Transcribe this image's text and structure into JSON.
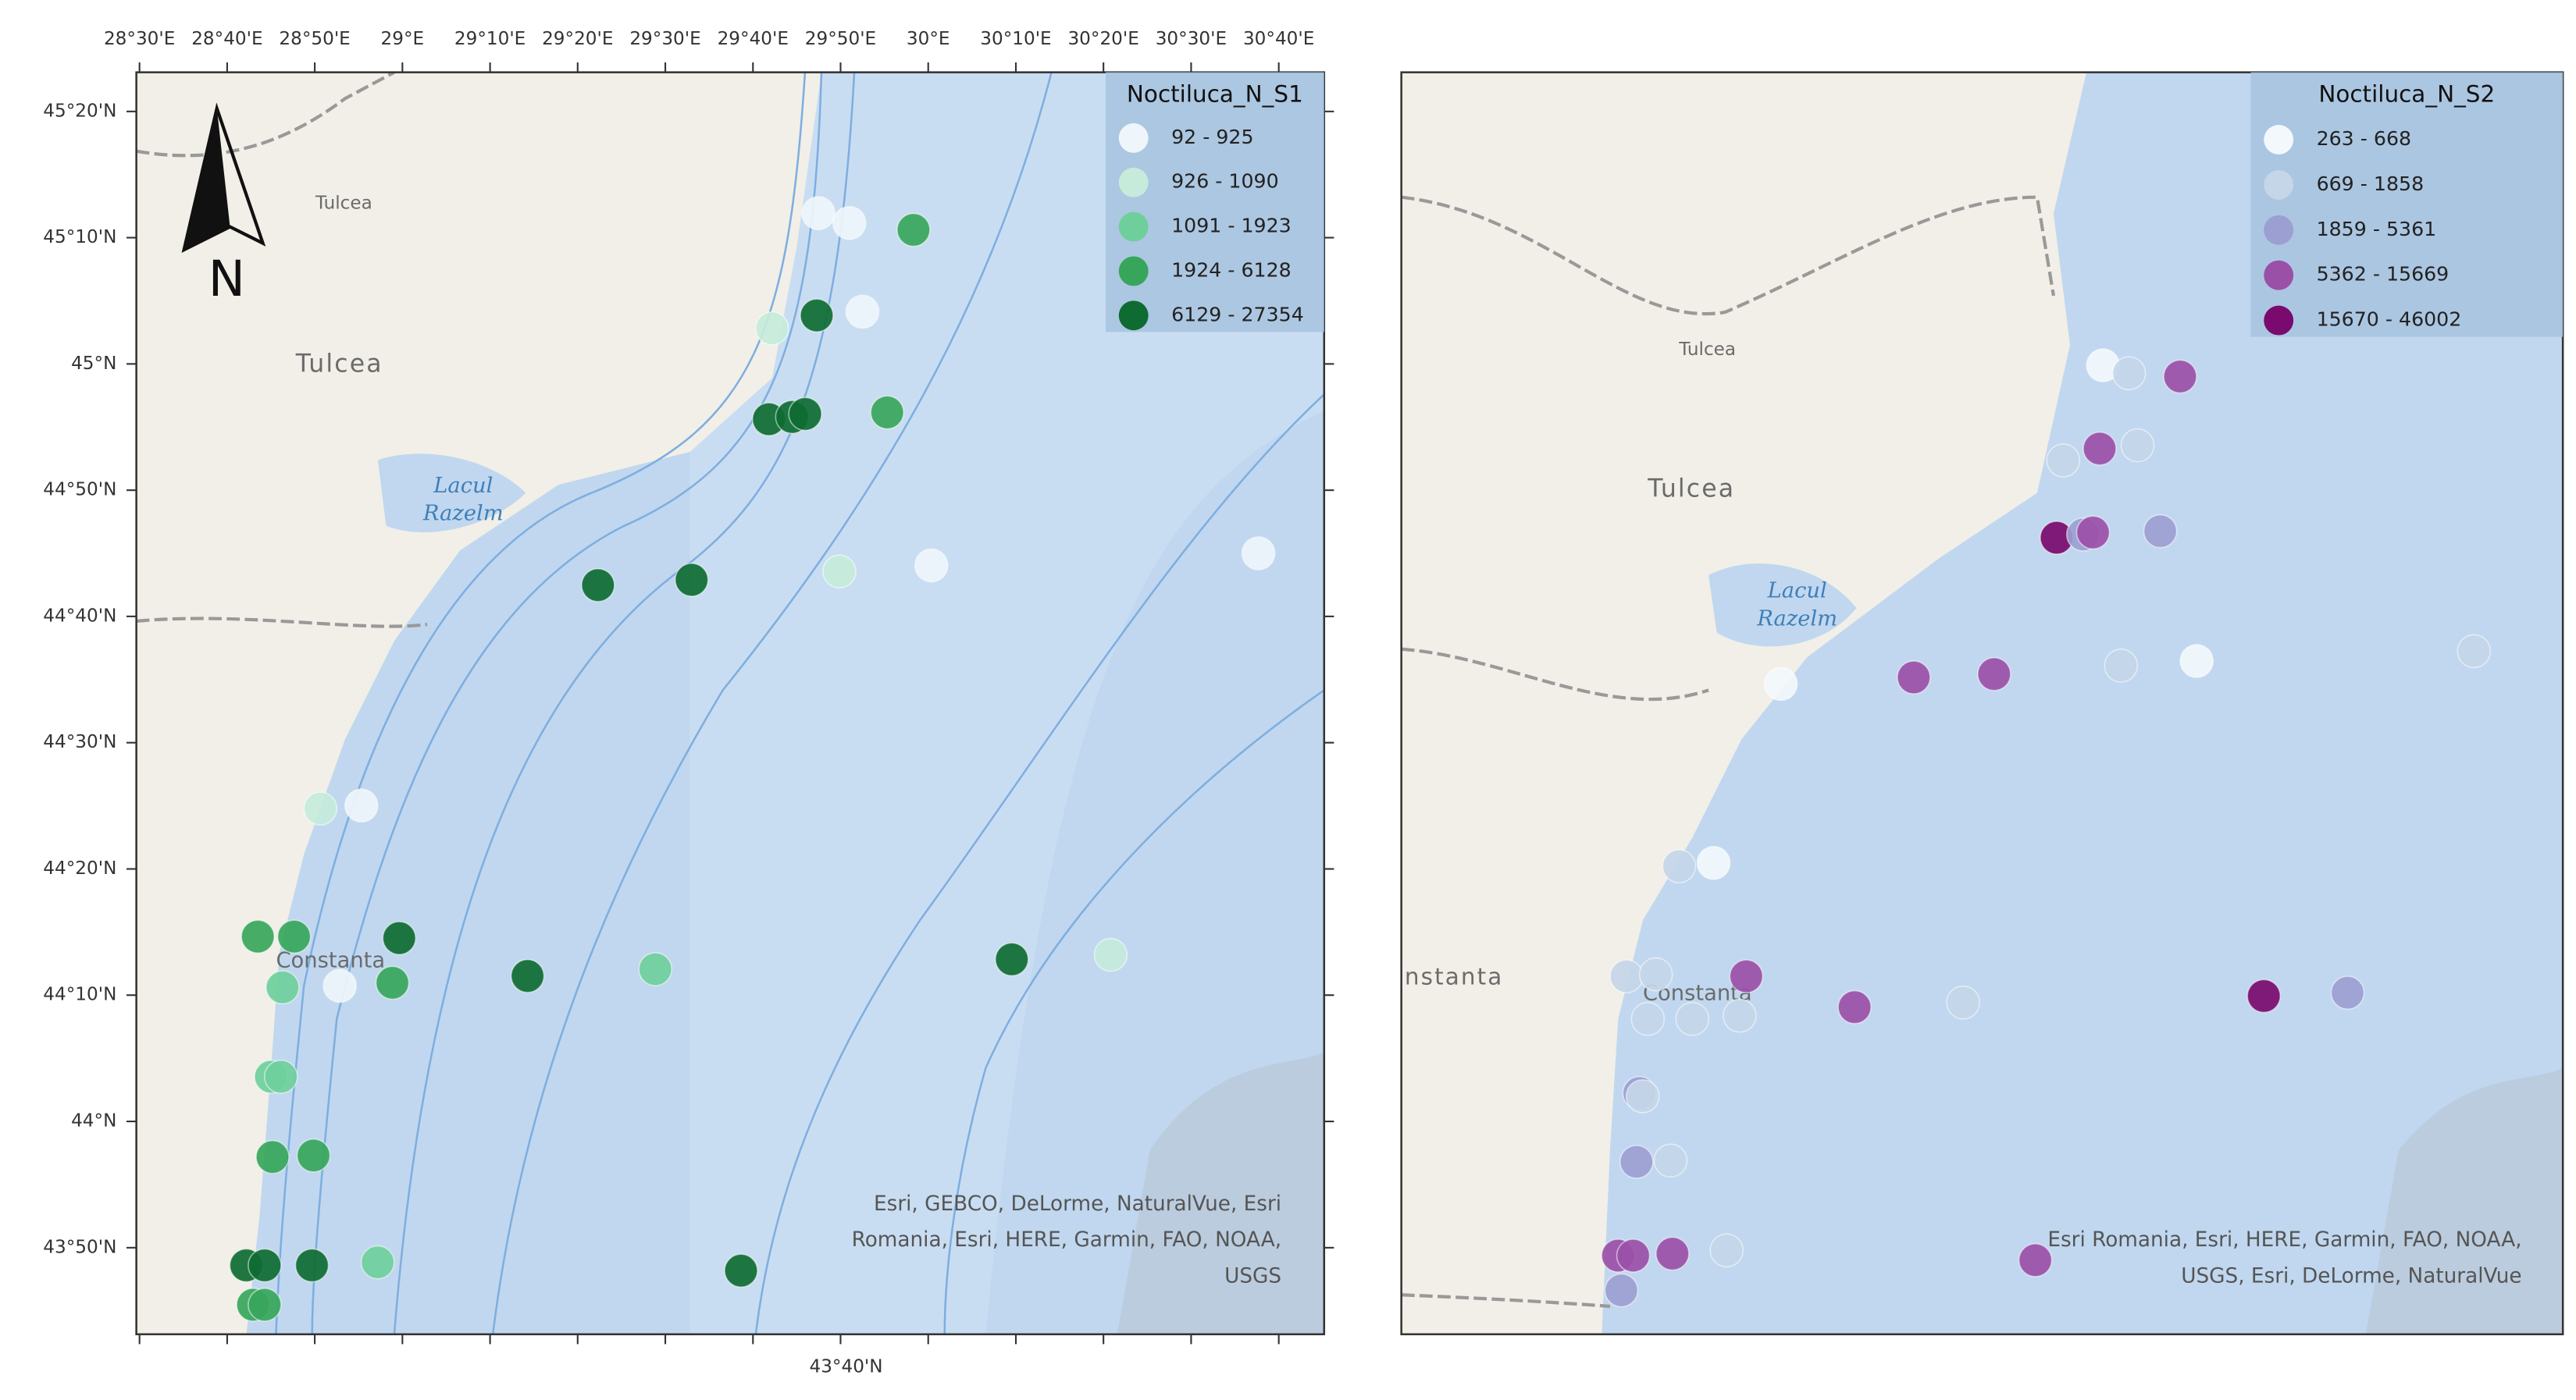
{
  "north_label": "N",
  "bottom_label": "43°40'N",
  "maps": [
    {
      "legend_title": "Noctiluca_N_S1",
      "classes": [
        {
          "label": "92 - 925",
          "color": "#eef5fb"
        },
        {
          "label": "926 - 1090",
          "color": "#c6ebdb"
        },
        {
          "label": "1091 - 1923",
          "color": "#6fcf9c"
        },
        {
          "label": "1924 - 6128",
          "color": "#37a65b"
        },
        {
          "label": "6129 - 27354",
          "color": "#0e6b32"
        }
      ],
      "xlim": [
        28.494,
        30.753
      ],
      "ylim": [
        43.719,
        45.385
      ],
      "xticks": [
        {
          "value": 28.5,
          "label": "28°30'E"
        },
        {
          "value": 28.6667,
          "label": "28°40'E"
        },
        {
          "value": 28.8333,
          "label": "28°50'E"
        },
        {
          "value": 29,
          "label": "29°E"
        },
        {
          "value": 29.1667,
          "label": "29°10'E"
        },
        {
          "value": 29.3333,
          "label": "29°20'E"
        },
        {
          "value": 29.5,
          "label": "29°30'E"
        },
        {
          "value": 29.6667,
          "label": "29°40'E"
        },
        {
          "value": 29.8333,
          "label": "29°50'E"
        },
        {
          "value": 30,
          "label": "30°E"
        },
        {
          "value": 30.1667,
          "label": "30°10'E"
        },
        {
          "value": 30.3333,
          "label": "30°20'E"
        },
        {
          "value": 30.5,
          "label": "30°30'E"
        },
        {
          "value": 30.6667,
          "label": "30°40'E"
        }
      ],
      "yticks": [
        {
          "value": 45.3333,
          "label": "45°20'N"
        },
        {
          "value": 45.1667,
          "label": "45°10'N"
        },
        {
          "value": 45,
          "label": "45°N"
        },
        {
          "value": 44.8333,
          "label": "44°50'N"
        },
        {
          "value": 44.6667,
          "label": "44°40'N"
        },
        {
          "value": 44.5,
          "label": "44°30'N"
        },
        {
          "value": 44.3333,
          "label": "44°20'N"
        },
        {
          "value": 44.1667,
          "label": "44°10'N"
        },
        {
          "value": 44,
          "label": "44°N"
        },
        {
          "value": 43.8333,
          "label": "43°50'N"
        }
      ],
      "places": [
        "Tulcea",
        "Tulcea",
        "Lacul",
        "Razelm",
        "Constanta"
      ],
      "attribution": [
        "Esri, GEBCO, DeLorme, NaturalVue, Esri",
        "Romania, Esri, HERE, Garmin, FAO, NOAA,",
        "USGS"
      ],
      "points": [
        {
          "lon": 29.791,
          "lat": 45.199,
          "class": 0
        },
        {
          "lon": 29.85,
          "lat": 45.186,
          "class": 0
        },
        {
          "lon": 29.972,
          "lat": 45.177,
          "class": 3
        },
        {
          "lon": 29.703,
          "lat": 45.047,
          "class": 1
        },
        {
          "lon": 29.788,
          "lat": 45.064,
          "class": 4
        },
        {
          "lon": 29.875,
          "lat": 45.069,
          "class": 0
        },
        {
          "lon": 29.697,
          "lat": 44.927,
          "class": 4
        },
        {
          "lon": 29.741,
          "lat": 44.93,
          "class": 4
        },
        {
          "lon": 29.766,
          "lat": 44.934,
          "class": 4
        },
        {
          "lon": 29.922,
          "lat": 44.936,
          "class": 3
        },
        {
          "lon": 29.372,
          "lat": 44.708,
          "class": 4
        },
        {
          "lon": 29.55,
          "lat": 44.715,
          "class": 4
        },
        {
          "lon": 29.831,
          "lat": 44.726,
          "class": 1
        },
        {
          "lon": 30.006,
          "lat": 44.734,
          "class": 0
        },
        {
          "lon": 30.628,
          "lat": 44.75,
          "class": 0
        },
        {
          "lon": 28.844,
          "lat": 44.413,
          "class": 1
        },
        {
          "lon": 28.922,
          "lat": 44.417,
          "class": 0
        },
        {
          "lon": 28.725,
          "lat": 44.244,
          "class": 3
        },
        {
          "lon": 28.794,
          "lat": 44.244,
          "class": 3
        },
        {
          "lon": 28.994,
          "lat": 44.242,
          "class": 4
        },
        {
          "lon": 28.772,
          "lat": 44.177,
          "class": 2
        },
        {
          "lon": 28.881,
          "lat": 44.179,
          "class": 0
        },
        {
          "lon": 28.981,
          "lat": 44.183,
          "class": 3
        },
        {
          "lon": 29.238,
          "lat": 44.192,
          "class": 4
        },
        {
          "lon": 29.481,
          "lat": 44.201,
          "class": 2
        },
        {
          "lon": 30.159,
          "lat": 44.214,
          "class": 4
        },
        {
          "lon": 30.347,
          "lat": 44.22,
          "class": 1
        },
        {
          "lon": 28.75,
          "lat": 44.059,
          "class": 2
        },
        {
          "lon": 28.769,
          "lat": 44.059,
          "class": 2
        },
        {
          "lon": 28.753,
          "lat": 43.953,
          "class": 3
        },
        {
          "lon": 28.831,
          "lat": 43.955,
          "class": 3
        },
        {
          "lon": 28.703,
          "lat": 43.81,
          "class": 4
        },
        {
          "lon": 28.738,
          "lat": 43.81,
          "class": 4
        },
        {
          "lon": 28.828,
          "lat": 43.81,
          "class": 4
        },
        {
          "lon": 28.953,
          "lat": 43.814,
          "class": 2
        },
        {
          "lon": 29.644,
          "lat": 43.803,
          "class": 4
        },
        {
          "lon": 28.716,
          "lat": 43.758,
          "class": 3
        },
        {
          "lon": 28.738,
          "lat": 43.758,
          "class": 3
        }
      ]
    },
    {
      "legend_title": "Noctiluca_N_S2",
      "classes": [
        {
          "label": "263 - 668",
          "color": "#f3f8fc"
        },
        {
          "label": "669 - 1858",
          "color": "#c4d6e8"
        },
        {
          "label": "1859 - 5361",
          "color": "#9c9fd2"
        },
        {
          "label": "5362 - 15669",
          "color": "#9b50a8"
        },
        {
          "label": "15670 - 46002",
          "color": "#7a0a6e"
        }
      ],
      "xlim": [
        28.25,
        30.705
      ],
      "ylim": [
        43.712,
        45.637
      ],
      "places": [
        "Tulcea",
        "Tulcea",
        "Lacul",
        "Razelm",
        "nstanta",
        "Constanta"
      ],
      "attribution": [
        "Esri Romania, Esri, HERE, Garmin, FAO, NOAA,",
        "USGS, Esri, DeLorme, NaturalVue"
      ],
      "points": [
        {
          "lon": 29.733,
          "lat": 45.19,
          "class": 0
        },
        {
          "lon": 29.788,
          "lat": 45.178,
          "class": 1
        },
        {
          "lon": 29.896,
          "lat": 45.173,
          "class": 3
        },
        {
          "lon": 29.649,
          "lat": 45.045,
          "class": 1
        },
        {
          "lon": 29.726,
          "lat": 45.063,
          "class": 3
        },
        {
          "lon": 29.806,
          "lat": 45.068,
          "class": 1
        },
        {
          "lon": 29.635,
          "lat": 44.927,
          "class": 4
        },
        {
          "lon": 29.691,
          "lat": 44.932,
          "class": 2
        },
        {
          "lon": 29.712,
          "lat": 44.935,
          "class": 3
        },
        {
          "lon": 29.854,
          "lat": 44.937,
          "class": 2
        },
        {
          "lon": 29.052,
          "lat": 44.704,
          "class": 0
        },
        {
          "lon": 29.333,
          "lat": 44.714,
          "class": 3
        },
        {
          "lon": 29.503,
          "lat": 44.719,
          "class": 3
        },
        {
          "lon": 29.771,
          "lat": 44.732,
          "class": 1
        },
        {
          "lon": 29.931,
          "lat": 44.739,
          "class": 0
        },
        {
          "lon": 30.517,
          "lat": 44.754,
          "class": 1
        },
        {
          "lon": 28.837,
          "lat": 44.426,
          "class": 1
        },
        {
          "lon": 28.91,
          "lat": 44.431,
          "class": 0
        },
        {
          "lon": 28.726,
          "lat": 44.258,
          "class": 1
        },
        {
          "lon": 28.788,
          "lat": 44.261,
          "class": 1
        },
        {
          "lon": 28.979,
          "lat": 44.258,
          "class": 3
        },
        {
          "lon": 30.073,
          "lat": 44.228,
          "class": 4
        },
        {
          "lon": 30.25,
          "lat": 44.233,
          "class": 2
        },
        {
          "lon": 28.771,
          "lat": 44.193,
          "class": 1
        },
        {
          "lon": 28.865,
          "lat": 44.193,
          "class": 1
        },
        {
          "lon": 28.965,
          "lat": 44.198,
          "class": 1
        },
        {
          "lon": 29.208,
          "lat": 44.211,
          "class": 3
        },
        {
          "lon": 29.4375,
          "lat": 44.218,
          "class": 1
        },
        {
          "lon": 28.753,
          "lat": 44.08,
          "class": 2
        },
        {
          "lon": 28.76,
          "lat": 44.075,
          "class": 1
        },
        {
          "lon": 28.747,
          "lat": 43.975,
          "class": 2
        },
        {
          "lon": 28.819,
          "lat": 43.977,
          "class": 1
        },
        {
          "lon": 28.708,
          "lat": 43.832,
          "class": 3
        },
        {
          "lon": 28.74,
          "lat": 43.832,
          "class": 3
        },
        {
          "lon": 28.823,
          "lat": 43.835,
          "class": 3
        },
        {
          "lon": 28.9375,
          "lat": 43.84,
          "class": 1
        },
        {
          "lon": 29.59,
          "lat": 43.825,
          "class": 3
        },
        {
          "lon": 28.715,
          "lat": 43.779,
          "class": 2
        }
      ]
    }
  ]
}
